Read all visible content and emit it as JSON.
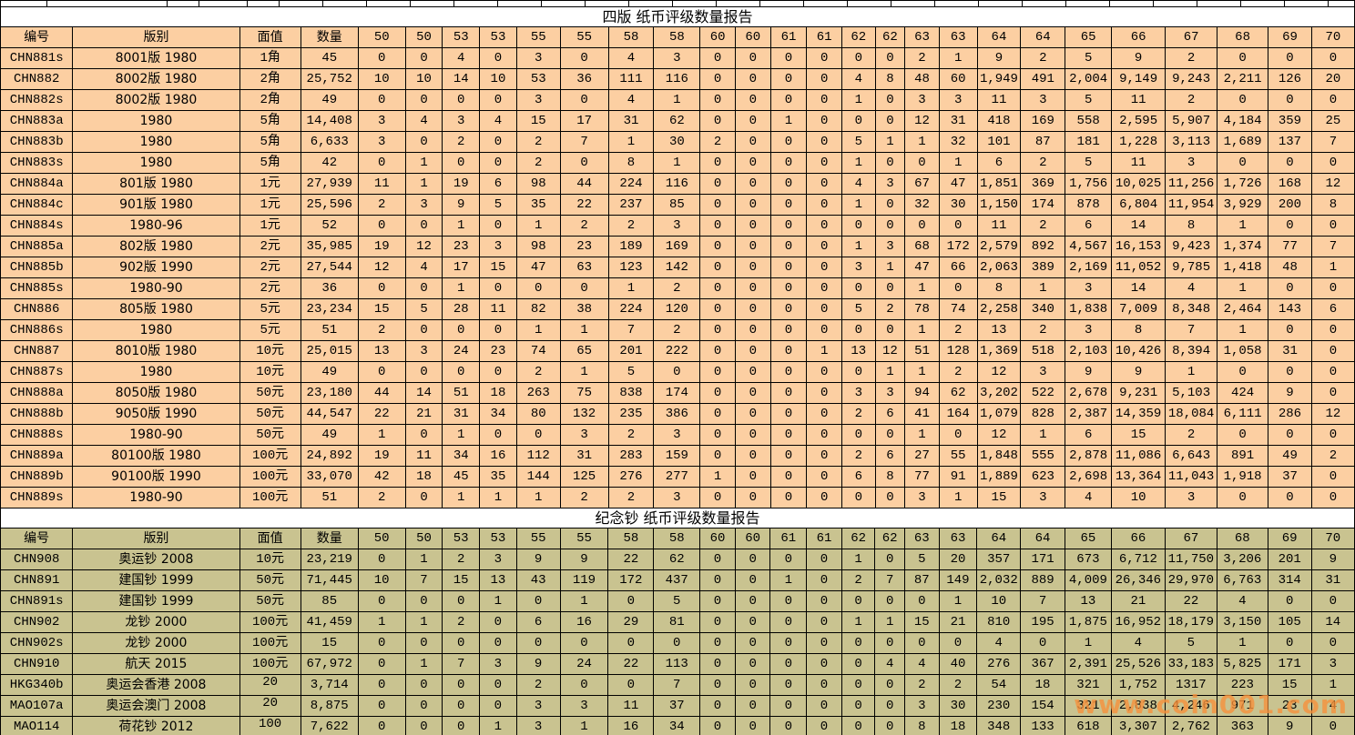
{
  "watermark": "www.coin001.com",
  "colors": {
    "table1_bg": "#fccfa2",
    "table2_bg": "#c9c390",
    "grid": "#000000",
    "title_bg": "#ffffff",
    "watermark_color": "#f6923d"
  },
  "columns": [
    "编号",
    "版别",
    "面值",
    "数量",
    "50",
    "50",
    "53",
    "53",
    "55",
    "55",
    "58",
    "58",
    "60",
    "60",
    "61",
    "61",
    "62",
    "62",
    "63",
    "63",
    "64",
    "64",
    "65",
    "66",
    "67",
    "68",
    "69",
    "70"
  ],
  "tables": [
    {
      "title": "四版 纸币评级数量报告",
      "rows": [
        [
          "CHN881s",
          "8001版 1980",
          "1角",
          "45",
          "0",
          "0",
          "4",
          "0",
          "3",
          "0",
          "4",
          "3",
          "0",
          "0",
          "0",
          "0",
          "0",
          "0",
          "2",
          "1",
          "9",
          "2",
          "5",
          "9",
          "2",
          "0",
          "0",
          "0"
        ],
        [
          "CHN882",
          "8002版 1980",
          "2角",
          "25,752",
          "10",
          "10",
          "14",
          "10",
          "53",
          "36",
          "111",
          "116",
          "0",
          "0",
          "0",
          "0",
          "4",
          "8",
          "48",
          "60",
          "1,949",
          "491",
          "2,004",
          "9,149",
          "9,243",
          "2,211",
          "126",
          "20"
        ],
        [
          "CHN882s",
          "8002版 1980",
          "2角",
          "49",
          "0",
          "0",
          "0",
          "0",
          "3",
          "0",
          "4",
          "1",
          "0",
          "0",
          "0",
          "0",
          "1",
          "0",
          "3",
          "3",
          "11",
          "3",
          "5",
          "11",
          "2",
          "0",
          "0",
          "0"
        ],
        [
          "CHN883a",
          "1980",
          "5角",
          "14,408",
          "3",
          "4",
          "3",
          "4",
          "15",
          "17",
          "31",
          "62",
          "0",
          "0",
          "1",
          "0",
          "0",
          "0",
          "12",
          "31",
          "418",
          "169",
          "558",
          "2,595",
          "5,907",
          "4,184",
          "359",
          "25"
        ],
        [
          "CHN883b",
          "1980",
          "5角",
          "6,633",
          "3",
          "0",
          "2",
          "0",
          "2",
          "7",
          "1",
          "30",
          "2",
          "0",
          "0",
          "0",
          "5",
          "1",
          "1",
          "32",
          "101",
          "87",
          "181",
          "1,228",
          "3,113",
          "1,689",
          "137",
          "7"
        ],
        [
          "CHN883s",
          "1980",
          "5角",
          "42",
          "0",
          "1",
          "0",
          "0",
          "2",
          "0",
          "8",
          "1",
          "0",
          "0",
          "0",
          "0",
          "1",
          "0",
          "0",
          "1",
          "6",
          "2",
          "5",
          "11",
          "3",
          "0",
          "0",
          "0"
        ],
        [
          "CHN884a",
          "801版 1980",
          "1元",
          "27,939",
          "11",
          "1",
          "19",
          "6",
          "98",
          "44",
          "224",
          "116",
          "0",
          "0",
          "0",
          "0",
          "4",
          "3",
          "67",
          "47",
          "1,851",
          "369",
          "1,756",
          "10,025",
          "11,256",
          "1,726",
          "168",
          "12"
        ],
        [
          "CHN884c",
          "901版 1980",
          "1元",
          "25,596",
          "2",
          "3",
          "9",
          "5",
          "35",
          "22",
          "237",
          "85",
          "0",
          "0",
          "0",
          "0",
          "1",
          "0",
          "32",
          "30",
          "1,150",
          "174",
          "878",
          "6,804",
          "11,954",
          "3,929",
          "200",
          "8"
        ],
        [
          "CHN884s",
          "1980-96",
          "1元",
          "52",
          "0",
          "0",
          "1",
          "0",
          "1",
          "2",
          "2",
          "3",
          "0",
          "0",
          "0",
          "0",
          "0",
          "0",
          "0",
          "0",
          "11",
          "2",
          "6",
          "14",
          "8",
          "1",
          "0",
          "0"
        ],
        [
          "CHN885a",
          "802版 1980",
          "2元",
          "35,985",
          "19",
          "12",
          "23",
          "3",
          "98",
          "23",
          "189",
          "169",
          "0",
          "0",
          "0",
          "0",
          "1",
          "3",
          "68",
          "172",
          "2,579",
          "892",
          "4,567",
          "16,153",
          "9,423",
          "1,374",
          "77",
          "7"
        ],
        [
          "CHN885b",
          "902版 1990",
          "2元",
          "27,544",
          "12",
          "4",
          "17",
          "15",
          "47",
          "63",
          "123",
          "142",
          "0",
          "0",
          "0",
          "0",
          "3",
          "1",
          "47",
          "66",
          "2,063",
          "389",
          "2,169",
          "11,052",
          "9,785",
          "1,418",
          "48",
          "1"
        ],
        [
          "CHN885s",
          "1980-90",
          "2元",
          "36",
          "0",
          "0",
          "1",
          "0",
          "0",
          "0",
          "1",
          "2",
          "0",
          "0",
          "0",
          "0",
          "0",
          "0",
          "1",
          "0",
          "8",
          "1",
          "3",
          "14",
          "4",
          "1",
          "0",
          "0"
        ],
        [
          "CHN886",
          "805版 1980",
          "5元",
          "23,234",
          "15",
          "5",
          "28",
          "11",
          "82",
          "38",
          "224",
          "120",
          "0",
          "0",
          "0",
          "0",
          "5",
          "2",
          "78",
          "74",
          "2,258",
          "340",
          "1,838",
          "7,009",
          "8,348",
          "2,464",
          "143",
          "6"
        ],
        [
          "CHN886s",
          "1980",
          "5元",
          "51",
          "2",
          "0",
          "0",
          "0",
          "1",
          "1",
          "7",
          "2",
          "0",
          "0",
          "0",
          "0",
          "0",
          "0",
          "1",
          "2",
          "13",
          "2",
          "3",
          "8",
          "7",
          "1",
          "0",
          "0"
        ],
        [
          "CHN887",
          "8010版 1980",
          "10元",
          "25,015",
          "13",
          "3",
          "24",
          "23",
          "74",
          "65",
          "201",
          "222",
          "0",
          "0",
          "0",
          "1",
          "13",
          "12",
          "51",
          "128",
          "1,369",
          "518",
          "2,103",
          "10,426",
          "8,394",
          "1,058",
          "31",
          "0"
        ],
        [
          "CHN887s",
          "1980",
          "10元",
          "49",
          "0",
          "0",
          "0",
          "0",
          "2",
          "1",
          "5",
          "0",
          "0",
          "0",
          "0",
          "0",
          "0",
          "1",
          "1",
          "2",
          "12",
          "3",
          "9",
          "9",
          "1",
          "0",
          "0",
          "0"
        ],
        [
          "CHN888a",
          "8050版 1980",
          "50元",
          "23,180",
          "44",
          "14",
          "51",
          "18",
          "263",
          "75",
          "838",
          "174",
          "0",
          "0",
          "0",
          "0",
          "3",
          "3",
          "94",
          "62",
          "3,202",
          "522",
          "2,678",
          "9,231",
          "5,103",
          "424",
          "9",
          "0"
        ],
        [
          "CHN888b",
          "9050版 1990",
          "50元",
          "44,547",
          "22",
          "21",
          "31",
          "34",
          "80",
          "132",
          "235",
          "386",
          "0",
          "0",
          "0",
          "0",
          "2",
          "6",
          "41",
          "164",
          "1,079",
          "828",
          "2,387",
          "14,359",
          "18,084",
          "6,111",
          "286",
          "12"
        ],
        [
          "CHN888s",
          "1980-90",
          "50元",
          "49",
          "1",
          "0",
          "1",
          "0",
          "0",
          "3",
          "2",
          "3",
          "0",
          "0",
          "0",
          "0",
          "0",
          "0",
          "1",
          "0",
          "12",
          "1",
          "6",
          "15",
          "2",
          "0",
          "0",
          "0"
        ],
        [
          "CHN889a",
          "80100版 1980",
          "100元",
          "24,892",
          "19",
          "11",
          "34",
          "16",
          "112",
          "31",
          "283",
          "159",
          "0",
          "0",
          "0",
          "0",
          "2",
          "6",
          "27",
          "55",
          "1,848",
          "555",
          "2,878",
          "11,086",
          "6,643",
          "891",
          "49",
          "2"
        ],
        [
          "CHN889b",
          "90100版 1990",
          "100元",
          "33,070",
          "42",
          "18",
          "45",
          "35",
          "144",
          "125",
          "276",
          "277",
          "1",
          "0",
          "0",
          "0",
          "6",
          "8",
          "77",
          "91",
          "1,889",
          "623",
          "2,698",
          "13,364",
          "11,043",
          "1,918",
          "37",
          "0"
        ],
        [
          "CHN889s",
          "1980-90",
          "100元",
          "51",
          "2",
          "0",
          "1",
          "1",
          "1",
          "2",
          "2",
          "3",
          "0",
          "0",
          "0",
          "0",
          "0",
          "0",
          "3",
          "1",
          "15",
          "3",
          "4",
          "10",
          "3",
          "0",
          "0",
          "0"
        ]
      ]
    },
    {
      "title": "纪念钞 纸币评级数量报告",
      "rows": [
        [
          "CHN908",
          "奥运钞 2008",
          "10元",
          "23,219",
          "0",
          "1",
          "2",
          "3",
          "9",
          "9",
          "22",
          "62",
          "0",
          "0",
          "0",
          "0",
          "1",
          "0",
          "5",
          "20",
          "357",
          "171",
          "673",
          "6,712",
          "11,750",
          "3,206",
          "201",
          "9"
        ],
        [
          "CHN891",
          "建国钞 1999",
          "50元",
          "71,445",
          "10",
          "7",
          "15",
          "13",
          "43",
          "119",
          "172",
          "437",
          "0",
          "0",
          "1",
          "0",
          "2",
          "7",
          "87",
          "149",
          "2,032",
          "889",
          "4,009",
          "26,346",
          "29,970",
          "6,763",
          "314",
          "31"
        ],
        [
          "CHN891s",
          "建国钞 1999",
          "50元",
          "85",
          "0",
          "0",
          "0",
          "1",
          "0",
          "1",
          "0",
          "5",
          "0",
          "0",
          "0",
          "0",
          "0",
          "0",
          "0",
          "1",
          "10",
          "7",
          "13",
          "21",
          "22",
          "4",
          "0",
          "0"
        ],
        [
          "CHN902",
          "龙钞 2000",
          "100元",
          "41,459",
          "1",
          "1",
          "2",
          "0",
          "6",
          "16",
          "29",
          "81",
          "0",
          "0",
          "0",
          "0",
          "1",
          "1",
          "15",
          "21",
          "810",
          "195",
          "1,875",
          "16,952",
          "18,179",
          "3,150",
          "105",
          "14"
        ],
        [
          "CHN902s",
          "龙钞 2000",
          "100元",
          "15",
          "0",
          "0",
          "0",
          "0",
          "0",
          "0",
          "0",
          "0",
          "0",
          "0",
          "0",
          "0",
          "0",
          "0",
          "0",
          "0",
          "4",
          "0",
          "1",
          "4",
          "5",
          "1",
          "0",
          "0"
        ],
        [
          "CHN910",
          "航天 2015",
          "100元",
          "67,972",
          "0",
          "1",
          "7",
          "3",
          "9",
          "24",
          "22",
          "113",
          "0",
          "0",
          "0",
          "0",
          "0",
          "4",
          "4",
          "40",
          "276",
          "367",
          "2,391",
          "25,526",
          "33,183",
          "5,825",
          "171",
          "3"
        ],
        [
          "HKG340b",
          "奥运会香港 2008",
          "20",
          "3,714",
          "0",
          "0",
          "0",
          "0",
          "2",
          "0",
          "0",
          "7",
          "0",
          "0",
          "0",
          "0",
          "0",
          "0",
          "2",
          "2",
          "54",
          "18",
          "321",
          "1,752",
          "1317",
          "223",
          "15",
          "1"
        ],
        [
          "MAO107a",
          "奥运会澳门 2008",
          "20",
          "8,875",
          "0",
          "0",
          "0",
          "0",
          "3",
          "3",
          "11",
          "37",
          "0",
          "0",
          "0",
          "0",
          "0",
          "0",
          "3",
          "30",
          "230",
          "154",
          "321",
          "2,838",
          "4,246",
          "971",
          "23",
          "4"
        ],
        [
          "MAO114",
          "荷花钞 2012",
          "100",
          "7,622",
          "0",
          "0",
          "0",
          "1",
          "3",
          "1",
          "16",
          "34",
          "0",
          "0",
          "0",
          "0",
          "0",
          "0",
          "8",
          "18",
          "348",
          "133",
          "618",
          "3,307",
          "2,762",
          "363",
          "9",
          "0"
        ]
      ]
    }
  ]
}
